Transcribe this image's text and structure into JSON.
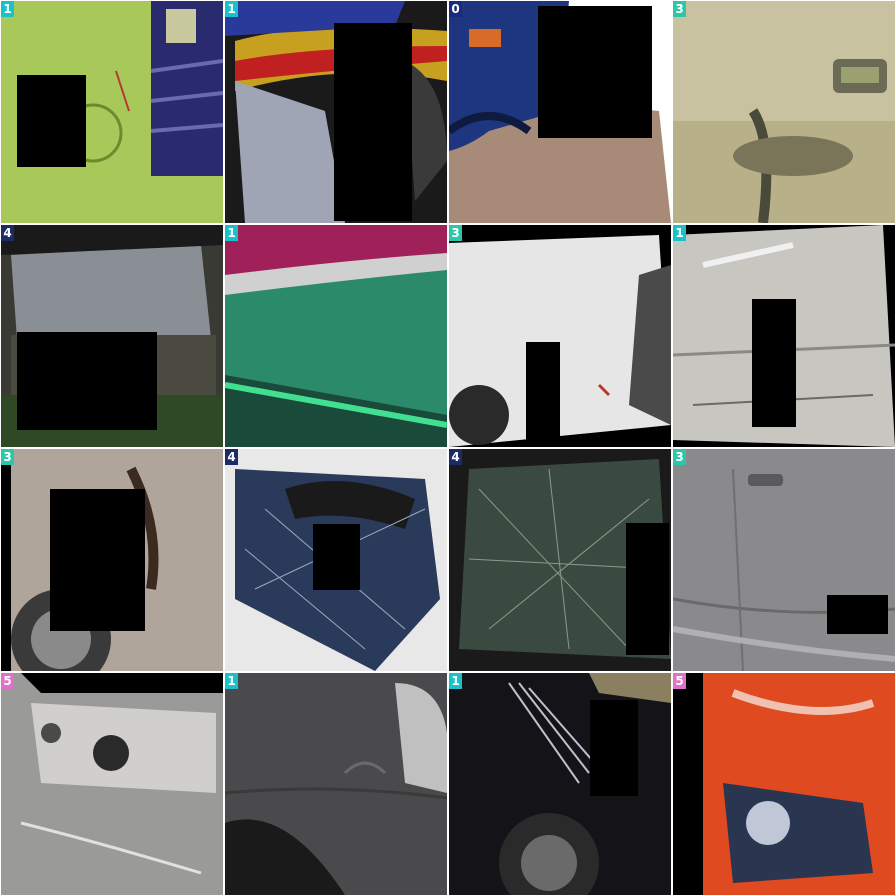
{
  "tiles": [
    {
      "label": "1",
      "badge_color": "#17c3c9"
    },
    {
      "label": "1",
      "badge_color": "#17c3c9"
    },
    {
      "label": "0",
      "badge_color": "#1c2a7a"
    },
    {
      "label": "3",
      "badge_color": "#2cc7a8"
    },
    {
      "label": "4",
      "badge_color": "#1c2a6a"
    },
    {
      "label": "1",
      "badge_color": "#17c3c9"
    },
    {
      "label": "3",
      "badge_color": "#2cc7a8"
    },
    {
      "label": "1",
      "badge_color": "#17c3c9"
    },
    {
      "label": "3",
      "badge_color": "#2cc7a8"
    },
    {
      "label": "4",
      "badge_color": "#1c2a6a"
    },
    {
      "label": "4",
      "badge_color": "#1c2a6a"
    },
    {
      "label": "3",
      "badge_color": "#2cc7a8"
    },
    {
      "label": "5",
      "badge_color": "#e070c8"
    },
    {
      "label": "1",
      "badge_color": "#17c3c9"
    },
    {
      "label": "1",
      "badge_color": "#17c3c9"
    },
    {
      "label": "5",
      "badge_color": "#e070c8"
    }
  ]
}
